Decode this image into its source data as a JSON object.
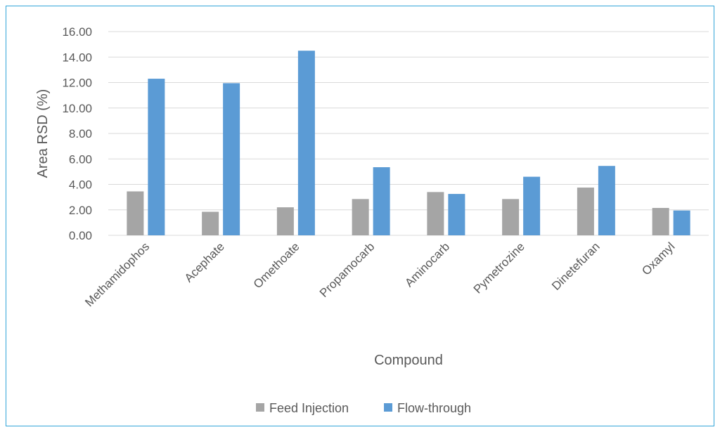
{
  "chart_data": {
    "type": "bar",
    "title": "",
    "xlabel": "Compound",
    "ylabel": "Area RSD (%)",
    "ylim": [
      0,
      16
    ],
    "yticks": [
      "0.00",
      "2.00",
      "4.00",
      "6.00",
      "8.00",
      "10.00",
      "12.00",
      "14.00",
      "16.00"
    ],
    "grid": true,
    "legend_position": "bottom",
    "categories": [
      "Methamidophos",
      "Acephate",
      "Omethoate",
      "Propamocarb",
      "Aminocarb",
      "Pymetrozine",
      "Dinetefuran",
      "Oxamyl"
    ],
    "series": [
      {
        "name": "Feed Injection",
        "color": "#a5a5a5",
        "values": [
          3.45,
          1.85,
          2.2,
          2.85,
          3.4,
          2.85,
          3.75,
          2.15
        ]
      },
      {
        "name": "Flow-through",
        "color": "#5b9bd5",
        "values": [
          12.3,
          11.95,
          14.5,
          5.35,
          3.25,
          4.6,
          5.45,
          1.95
        ]
      }
    ]
  }
}
